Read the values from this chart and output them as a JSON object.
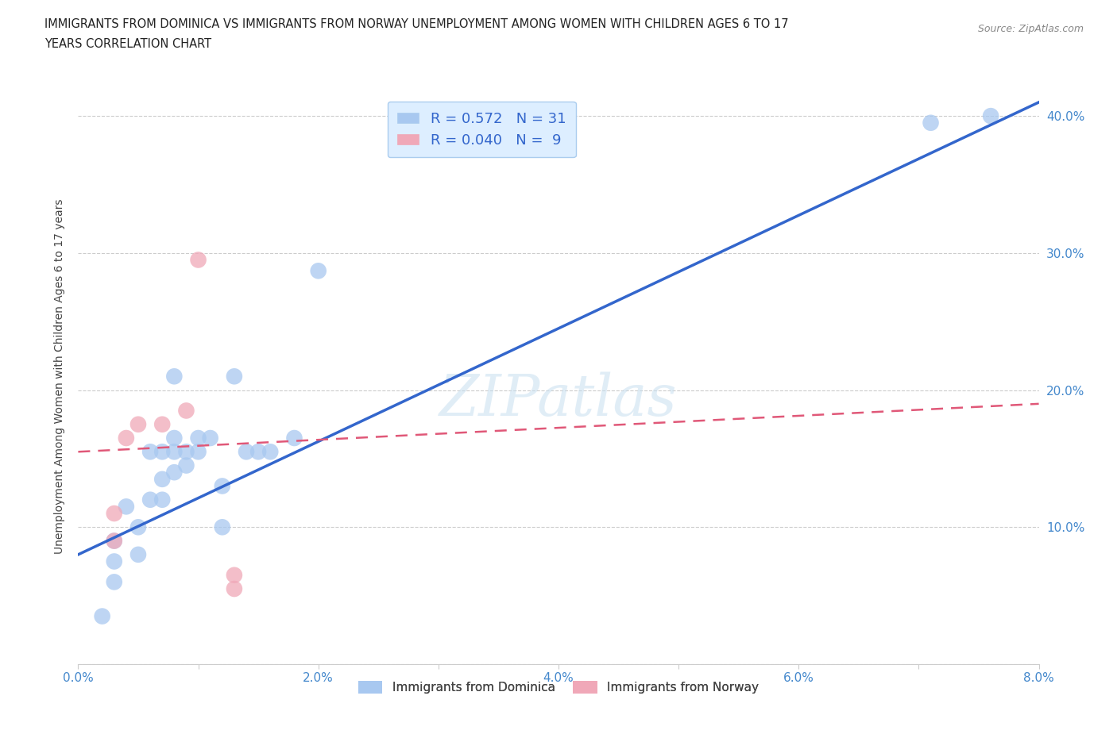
{
  "title_line1": "IMMIGRANTS FROM DOMINICA VS IMMIGRANTS FROM NORWAY UNEMPLOYMENT AMONG WOMEN WITH CHILDREN AGES 6 TO 17",
  "title_line2": "YEARS CORRELATION CHART",
  "source": "Source: ZipAtlas.com",
  "ylabel": "Unemployment Among Women with Children Ages 6 to 17 years",
  "xlim": [
    0.0,
    0.08
  ],
  "ylim": [
    0.0,
    0.42
  ],
  "xticks": [
    0.0,
    0.01,
    0.02,
    0.03,
    0.04,
    0.05,
    0.06,
    0.07,
    0.08
  ],
  "xtick_labels": [
    "0.0%",
    "",
    "2.0%",
    "",
    "4.0%",
    "",
    "6.0%",
    "",
    "8.0%"
  ],
  "yticks": [
    0.0,
    0.1,
    0.2,
    0.3,
    0.4
  ],
  "ytick_labels": [
    "",
    "10.0%",
    "20.0%",
    "30.0%",
    "40.0%"
  ],
  "dominica_R": 0.572,
  "dominica_N": 31,
  "norway_R": 0.04,
  "norway_N": 9,
  "dominica_color": "#a8c8f0",
  "norway_color": "#f0a8b8",
  "dominica_line_color": "#3366cc",
  "norway_line_color": "#e05878",
  "dominica_x": [
    0.002,
    0.003,
    0.003,
    0.003,
    0.004,
    0.005,
    0.005,
    0.006,
    0.006,
    0.007,
    0.007,
    0.007,
    0.008,
    0.008,
    0.008,
    0.008,
    0.009,
    0.009,
    0.01,
    0.01,
    0.011,
    0.012,
    0.012,
    0.013,
    0.014,
    0.015,
    0.016,
    0.018,
    0.02,
    0.071,
    0.076
  ],
  "dominica_y": [
    0.035,
    0.06,
    0.075,
    0.09,
    0.115,
    0.08,
    0.1,
    0.12,
    0.155,
    0.12,
    0.135,
    0.155,
    0.14,
    0.155,
    0.165,
    0.21,
    0.145,
    0.155,
    0.155,
    0.165,
    0.165,
    0.1,
    0.13,
    0.21,
    0.155,
    0.155,
    0.155,
    0.165,
    0.287,
    0.395,
    0.4
  ],
  "norway_x": [
    0.003,
    0.003,
    0.004,
    0.005,
    0.007,
    0.009,
    0.01,
    0.013,
    0.013
  ],
  "norway_y": [
    0.09,
    0.11,
    0.165,
    0.175,
    0.175,
    0.185,
    0.295,
    0.055,
    0.065
  ],
  "dominica_trendline_x": [
    0.0,
    0.08
  ],
  "dominica_trendline_y": [
    0.08,
    0.41
  ],
  "norway_trendline_x": [
    0.0,
    0.08
  ],
  "norway_trendline_y": [
    0.155,
    0.19
  ],
  "watermark_text": "ZIPatlas",
  "background_color": "#ffffff",
  "legend_dominica": "Immigrants from Dominica",
  "legend_norway": "Immigrants from Norway"
}
